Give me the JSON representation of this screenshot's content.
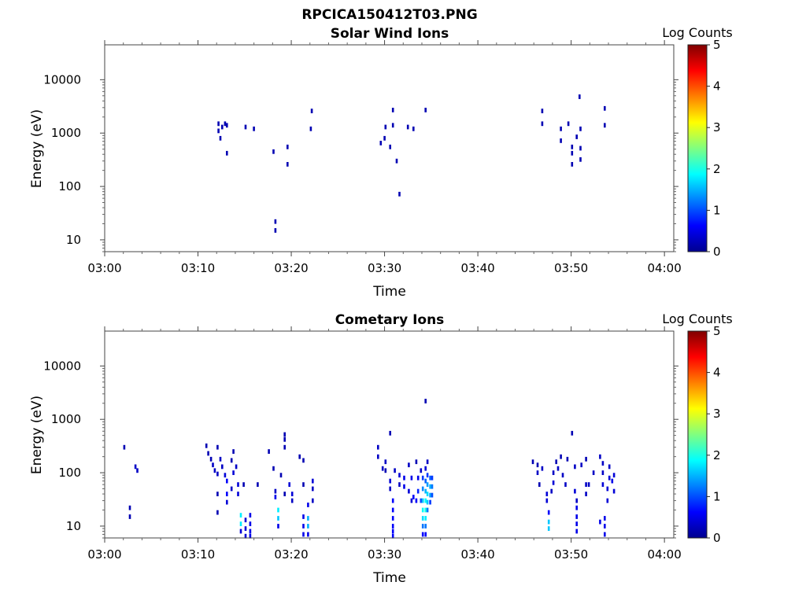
{
  "figure": {
    "suptitle": "RPCICA150412T03.PNG"
  },
  "colormap": [
    "#00008f",
    "#0000ff",
    "#0080ff",
    "#00ffff",
    "#80ff80",
    "#ffff00",
    "#ff8000",
    "#ff0000",
    "#800000"
  ],
  "chart_data": [
    {
      "type": "heatmap",
      "title": "Solar Wind Ions",
      "xlabel": "Time",
      "ylabel": "Energy (eV)",
      "ylog": true,
      "xlim_minutes": [
        0,
        61
      ],
      "ylim": [
        6,
        45000
      ],
      "x_ticks": [
        "03:00",
        "03:10",
        "03:20",
        "03:30",
        "03:40",
        "03:50",
        "04:00"
      ],
      "y_ticks": [
        "10",
        "100",
        "1000",
        "10000"
      ],
      "colorbar": {
        "label": "Log Counts",
        "range": [
          0,
          5
        ],
        "ticks": [
          "0",
          "1",
          "2",
          "3",
          "4",
          "5"
        ]
      },
      "cells": [
        {
          "t": 12.2,
          "e": 1500,
          "v": 0.2
        },
        {
          "t": 12.2,
          "e": 1100,
          "v": 0.2
        },
        {
          "t": 12.4,
          "e": 800,
          "v": 0.2
        },
        {
          "t": 12.6,
          "e": 1300,
          "v": 0.2
        },
        {
          "t": 12.9,
          "e": 1500,
          "v": 0.2
        },
        {
          "t": 13.1,
          "e": 1400,
          "v": 0.2
        },
        {
          "t": 13.1,
          "e": 420,
          "v": 0.2
        },
        {
          "t": 15.1,
          "e": 1300,
          "v": 0.2
        },
        {
          "t": 16.0,
          "e": 1200,
          "v": 0.2
        },
        {
          "t": 18.3,
          "e": 22,
          "v": 0.2
        },
        {
          "t": 18.3,
          "e": 15,
          "v": 0.2
        },
        {
          "t": 18.1,
          "e": 450,
          "v": 0.2
        },
        {
          "t": 19.6,
          "e": 550,
          "v": 0.2
        },
        {
          "t": 19.6,
          "e": 260,
          "v": 0.2
        },
        {
          "t": 22.2,
          "e": 2600,
          "v": 0.2
        },
        {
          "t": 22.1,
          "e": 1200,
          "v": 0.2
        },
        {
          "t": 29.6,
          "e": 650,
          "v": 0.2
        },
        {
          "t": 30.0,
          "e": 800,
          "v": 0.2
        },
        {
          "t": 30.1,
          "e": 1300,
          "v": 0.2
        },
        {
          "t": 30.6,
          "e": 550,
          "v": 0.2
        },
        {
          "t": 30.9,
          "e": 2700,
          "v": 0.2
        },
        {
          "t": 30.9,
          "e": 1400,
          "v": 0.2
        },
        {
          "t": 31.3,
          "e": 300,
          "v": 0.2
        },
        {
          "t": 31.6,
          "e": 72,
          "v": 0.2
        },
        {
          "t": 32.5,
          "e": 1300,
          "v": 0.2
        },
        {
          "t": 33.1,
          "e": 1200,
          "v": 0.2
        },
        {
          "t": 34.4,
          "e": 2700,
          "v": 0.2
        },
        {
          "t": 46.9,
          "e": 2600,
          "v": 0.2
        },
        {
          "t": 46.9,
          "e": 1500,
          "v": 0.2
        },
        {
          "t": 48.9,
          "e": 1200,
          "v": 0.2
        },
        {
          "t": 48.9,
          "e": 720,
          "v": 0.2
        },
        {
          "t": 49.7,
          "e": 1500,
          "v": 0.2
        },
        {
          "t": 50.1,
          "e": 550,
          "v": 0.2
        },
        {
          "t": 50.1,
          "e": 420,
          "v": 0.2
        },
        {
          "t": 50.1,
          "e": 260,
          "v": 0.2
        },
        {
          "t": 50.6,
          "e": 850,
          "v": 0.2
        },
        {
          "t": 51.0,
          "e": 1200,
          "v": 0.2
        },
        {
          "t": 51.0,
          "e": 520,
          "v": 0.2
        },
        {
          "t": 51.0,
          "e": 320,
          "v": 0.2
        },
        {
          "t": 50.9,
          "e": 4800,
          "v": 0.2
        },
        {
          "t": 53.6,
          "e": 2900,
          "v": 0.2
        },
        {
          "t": 53.6,
          "e": 1400,
          "v": 0.2
        }
      ]
    },
    {
      "type": "heatmap",
      "title": "Cometary Ions",
      "xlabel": "Time",
      "ylabel": "Energy (eV)",
      "ylog": true,
      "xlim_minutes": [
        0,
        61
      ],
      "ylim": [
        6,
        45000
      ],
      "x_ticks": [
        "03:00",
        "03:10",
        "03:20",
        "03:30",
        "03:40",
        "03:50",
        "04:00"
      ],
      "y_ticks": [
        "10",
        "100",
        "1000",
        "10000"
      ],
      "colorbar": {
        "label": "Log Counts",
        "range": [
          0,
          5
        ],
        "ticks": [
          "0",
          "1",
          "2",
          "3",
          "4",
          "5"
        ]
      },
      "cells": [
        {
          "t": 2.1,
          "e": 300,
          "v": 0.2
        },
        {
          "t": 2.7,
          "e": 22,
          "v": 0.2
        },
        {
          "t": 2.7,
          "e": 15,
          "v": 0.2
        },
        {
          "t": 3.3,
          "e": 130,
          "v": 0.3
        },
        {
          "t": 3.5,
          "e": 110,
          "v": 0.3
        },
        {
          "t": 10.9,
          "e": 320,
          "v": 0.2
        },
        {
          "t": 11.1,
          "e": 230,
          "v": 0.2
        },
        {
          "t": 11.4,
          "e": 180,
          "v": 0.2
        },
        {
          "t": 11.6,
          "e": 140,
          "v": 0.3
        },
        {
          "t": 11.8,
          "e": 110,
          "v": 0.3
        },
        {
          "t": 12.1,
          "e": 95,
          "v": 0.3
        },
        {
          "t": 12.1,
          "e": 300,
          "v": 0.2
        },
        {
          "t": 12.4,
          "e": 180,
          "v": 0.3
        },
        {
          "t": 12.6,
          "e": 130,
          "v": 0.3
        },
        {
          "t": 12.1,
          "e": 40,
          "v": 0.2
        },
        {
          "t": 12.1,
          "e": 18,
          "v": 0.2
        },
        {
          "t": 12.9,
          "e": 90,
          "v": 0.4
        },
        {
          "t": 13.1,
          "e": 70,
          "v": 0.6
        },
        {
          "t": 13.1,
          "e": 40,
          "v": 0.6
        },
        {
          "t": 13.1,
          "e": 28,
          "v": 0.4
        },
        {
          "t": 13.6,
          "e": 50,
          "v": 0.3
        },
        {
          "t": 13.8,
          "e": 100,
          "v": 0.4
        },
        {
          "t": 13.6,
          "e": 170,
          "v": 0.2
        },
        {
          "t": 13.8,
          "e": 250,
          "v": 0.2
        },
        {
          "t": 14.1,
          "e": 130,
          "v": 0.3
        },
        {
          "t": 14.3,
          "e": 60,
          "v": 0.4
        },
        {
          "t": 14.3,
          "e": 40,
          "v": 0.4
        },
        {
          "t": 14.6,
          "e": 16,
          "v": 1.8
        },
        {
          "t": 14.6,
          "e": 11,
          "v": 1.8
        },
        {
          "t": 14.6,
          "e": 8,
          "v": 0.4
        },
        {
          "t": 15.1,
          "e": 13,
          "v": 0.4
        },
        {
          "t": 15.1,
          "e": 9,
          "v": 0.4
        },
        {
          "t": 15.1,
          "e": 6.5,
          "v": 0.4
        },
        {
          "t": 15.6,
          "e": 16,
          "v": 0.5
        },
        {
          "t": 15.6,
          "e": 11,
          "v": 0.5
        },
        {
          "t": 15.6,
          "e": 8,
          "v": 0.5
        },
        {
          "t": 15.6,
          "e": 6.5,
          "v": 0.5
        },
        {
          "t": 14.9,
          "e": 60,
          "v": 0.2
        },
        {
          "t": 16.4,
          "e": 60,
          "v": 0.2
        },
        {
          "t": 17.6,
          "e": 250,
          "v": 0.2
        },
        {
          "t": 18.1,
          "e": 120,
          "v": 0.2
        },
        {
          "t": 18.3,
          "e": 45,
          "v": 0.3
        },
        {
          "t": 18.3,
          "e": 35,
          "v": 0.5
        },
        {
          "t": 18.6,
          "e": 20,
          "v": 1.8
        },
        {
          "t": 18.6,
          "e": 14,
          "v": 1.6
        },
        {
          "t": 18.6,
          "e": 10,
          "v": 0.5
        },
        {
          "t": 19.3,
          "e": 520,
          "v": 0.2
        },
        {
          "t": 19.3,
          "e": 420,
          "v": 0.2
        },
        {
          "t": 19.3,
          "e": 300,
          "v": 0.2
        },
        {
          "t": 18.9,
          "e": 90,
          "v": 0.2
        },
        {
          "t": 19.3,
          "e": 40,
          "v": 0.2
        },
        {
          "t": 19.8,
          "e": 60,
          "v": 0.4
        },
        {
          "t": 20.1,
          "e": 40,
          "v": 0.4
        },
        {
          "t": 20.1,
          "e": 30,
          "v": 0.3
        },
        {
          "t": 20.9,
          "e": 200,
          "v": 0.2
        },
        {
          "t": 21.3,
          "e": 170,
          "v": 0.2
        },
        {
          "t": 21.3,
          "e": 60,
          "v": 0.2
        },
        {
          "t": 21.3,
          "e": 15,
          "v": 0.5
        },
        {
          "t": 21.3,
          "e": 10,
          "v": 0.5
        },
        {
          "t": 21.3,
          "e": 7,
          "v": 0.5
        },
        {
          "t": 21.8,
          "e": 25,
          "v": 0.5
        },
        {
          "t": 21.8,
          "e": 14,
          "v": 1.5
        },
        {
          "t": 21.8,
          "e": 10,
          "v": 1.5
        },
        {
          "t": 21.8,
          "e": 7,
          "v": 0.5
        },
        {
          "t": 22.3,
          "e": 70,
          "v": 0.4
        },
        {
          "t": 22.3,
          "e": 50,
          "v": 0.3
        },
        {
          "t": 22.3,
          "e": 30,
          "v": 0.3
        },
        {
          "t": 29.3,
          "e": 300,
          "v": 0.3
        },
        {
          "t": 29.3,
          "e": 200,
          "v": 0.3
        },
        {
          "t": 29.8,
          "e": 120,
          "v": 0.3
        },
        {
          "t": 30.1,
          "e": 160,
          "v": 0.3
        },
        {
          "t": 30.1,
          "e": 110,
          "v": 0.2
        },
        {
          "t": 30.6,
          "e": 550,
          "v": 0.2
        },
        {
          "t": 30.6,
          "e": 70,
          "v": 0.4
        },
        {
          "t": 30.6,
          "e": 50,
          "v": 0.3
        },
        {
          "t": 30.9,
          "e": 30,
          "v": 0.6
        },
        {
          "t": 30.9,
          "e": 20,
          "v": 0.6
        },
        {
          "t": 30.9,
          "e": 14,
          "v": 0.6
        },
        {
          "t": 30.9,
          "e": 10,
          "v": 0.6
        },
        {
          "t": 30.9,
          "e": 8,
          "v": 0.6
        },
        {
          "t": 30.9,
          "e": 6.5,
          "v": 0.6
        },
        {
          "t": 31.1,
          "e": 110,
          "v": 0.3
        },
        {
          "t": 31.6,
          "e": 90,
          "v": 0.4
        },
        {
          "t": 31.6,
          "e": 60,
          "v": 0.3
        },
        {
          "t": 32.1,
          "e": 80,
          "v": 0.5
        },
        {
          "t": 32.1,
          "e": 55,
          "v": 0.5
        },
        {
          "t": 32.6,
          "e": 140,
          "v": 0.3
        },
        {
          "t": 32.6,
          "e": 45,
          "v": 0.4
        },
        {
          "t": 32.9,
          "e": 80,
          "v": 0.5
        },
        {
          "t": 32.9,
          "e": 30,
          "v": 0.4
        },
        {
          "t": 33.1,
          "e": 35,
          "v": 0.6
        },
        {
          "t": 33.4,
          "e": 160,
          "v": 0.2
        },
        {
          "t": 33.4,
          "e": 30,
          "v": 0.6
        },
        {
          "t": 33.6,
          "e": 80,
          "v": 0.5
        },
        {
          "t": 33.6,
          "e": 45,
          "v": 0.8
        },
        {
          "t": 33.9,
          "e": 110,
          "v": 0.3
        },
        {
          "t": 33.9,
          "e": 30,
          "v": 1.0
        },
        {
          "t": 34.1,
          "e": 80,
          "v": 0.9
        },
        {
          "t": 34.1,
          "e": 50,
          "v": 1.3
        },
        {
          "t": 34.1,
          "e": 30,
          "v": 1.6
        },
        {
          "t": 34.1,
          "e": 20,
          "v": 1.9
        },
        {
          "t": 34.1,
          "e": 14,
          "v": 1.7
        },
        {
          "t": 34.1,
          "e": 10,
          "v": 1.2
        },
        {
          "t": 34.1,
          "e": 7,
          "v": 0.6
        },
        {
          "t": 34.4,
          "e": 2200,
          "v": 0.2
        },
        {
          "t": 34.4,
          "e": 120,
          "v": 0.4
        },
        {
          "t": 34.4,
          "e": 70,
          "v": 1.1
        },
        {
          "t": 34.4,
          "e": 45,
          "v": 1.5
        },
        {
          "t": 34.4,
          "e": 30,
          "v": 1.9
        },
        {
          "t": 34.4,
          "e": 20,
          "v": 2.0
        },
        {
          "t": 34.4,
          "e": 14,
          "v": 1.8
        },
        {
          "t": 34.4,
          "e": 10,
          "v": 1.2
        },
        {
          "t": 34.4,
          "e": 7,
          "v": 0.6
        },
        {
          "t": 34.6,
          "e": 160,
          "v": 0.3
        },
        {
          "t": 34.6,
          "e": 90,
          "v": 0.9
        },
        {
          "t": 34.6,
          "e": 60,
          "v": 1.4
        },
        {
          "t": 34.6,
          "e": 40,
          "v": 1.7
        },
        {
          "t": 34.6,
          "e": 28,
          "v": 1.6
        },
        {
          "t": 34.6,
          "e": 20,
          "v": 1.2
        },
        {
          "t": 34.9,
          "e": 80,
          "v": 1.1
        },
        {
          "t": 34.9,
          "e": 55,
          "v": 1.5
        },
        {
          "t": 34.9,
          "e": 38,
          "v": 1.4
        },
        {
          "t": 34.9,
          "e": 28,
          "v": 0.9
        },
        {
          "t": 35.1,
          "e": 80,
          "v": 0.9
        },
        {
          "t": 35.1,
          "e": 55,
          "v": 1.2
        },
        {
          "t": 35.1,
          "e": 38,
          "v": 1.0
        },
        {
          "t": 45.9,
          "e": 160,
          "v": 0.2
        },
        {
          "t": 46.4,
          "e": 140,
          "v": 0.2
        },
        {
          "t": 46.4,
          "e": 100,
          "v": 0.3
        },
        {
          "t": 46.6,
          "e": 60,
          "v": 0.2
        },
        {
          "t": 46.9,
          "e": 120,
          "v": 0.3
        },
        {
          "t": 47.4,
          "e": 40,
          "v": 0.4
        },
        {
          "t": 47.4,
          "e": 30,
          "v": 0.4
        },
        {
          "t": 47.6,
          "e": 12,
          "v": 1.6
        },
        {
          "t": 47.6,
          "e": 9,
          "v": 1.6
        },
        {
          "t": 47.6,
          "e": 18,
          "v": 0.6
        },
        {
          "t": 47.9,
          "e": 45,
          "v": 0.3
        },
        {
          "t": 48.1,
          "e": 100,
          "v": 0.3
        },
        {
          "t": 48.1,
          "e": 65,
          "v": 0.4
        },
        {
          "t": 48.4,
          "e": 160,
          "v": 0.2
        },
        {
          "t": 48.6,
          "e": 120,
          "v": 0.3
        },
        {
          "t": 48.9,
          "e": 200,
          "v": 0.2
        },
        {
          "t": 49.1,
          "e": 90,
          "v": 0.3
        },
        {
          "t": 49.4,
          "e": 60,
          "v": 0.3
        },
        {
          "t": 49.6,
          "e": 180,
          "v": 0.2
        },
        {
          "t": 50.1,
          "e": 550,
          "v": 0.2
        },
        {
          "t": 50.4,
          "e": 130,
          "v": 0.3
        },
        {
          "t": 50.4,
          "e": 45,
          "v": 0.4
        },
        {
          "t": 50.6,
          "e": 30,
          "v": 0.3
        },
        {
          "t": 50.6,
          "e": 22,
          "v": 0.5
        },
        {
          "t": 50.6,
          "e": 15,
          "v": 0.5
        },
        {
          "t": 50.6,
          "e": 11,
          "v": 0.5
        },
        {
          "t": 50.6,
          "e": 8,
          "v": 0.5
        },
        {
          "t": 51.1,
          "e": 140,
          "v": 0.3
        },
        {
          "t": 51.6,
          "e": 180,
          "v": 0.2
        },
        {
          "t": 51.6,
          "e": 60,
          "v": 0.3
        },
        {
          "t": 51.6,
          "e": 40,
          "v": 0.3
        },
        {
          "t": 51.9,
          "e": 60,
          "v": 0.3
        },
        {
          "t": 52.4,
          "e": 100,
          "v": 0.3
        },
        {
          "t": 53.1,
          "e": 200,
          "v": 0.3
        },
        {
          "t": 53.1,
          "e": 12,
          "v": 0.5
        },
        {
          "t": 53.4,
          "e": 150,
          "v": 0.3
        },
        {
          "t": 53.4,
          "e": 100,
          "v": 0.3
        },
        {
          "t": 53.4,
          "e": 60,
          "v": 0.4
        },
        {
          "t": 53.6,
          "e": 14,
          "v": 0.5
        },
        {
          "t": 53.6,
          "e": 10,
          "v": 0.5
        },
        {
          "t": 53.6,
          "e": 7,
          "v": 0.5
        },
        {
          "t": 53.9,
          "e": 50,
          "v": 0.4
        },
        {
          "t": 53.9,
          "e": 30,
          "v": 0.4
        },
        {
          "t": 54.1,
          "e": 130,
          "v": 0.3
        },
        {
          "t": 54.1,
          "e": 80,
          "v": 0.4
        },
        {
          "t": 54.4,
          "e": 70,
          "v": 0.5
        },
        {
          "t": 54.6,
          "e": 90,
          "v": 0.4
        },
        {
          "t": 54.6,
          "e": 45,
          "v": 0.4
        }
      ]
    }
  ]
}
